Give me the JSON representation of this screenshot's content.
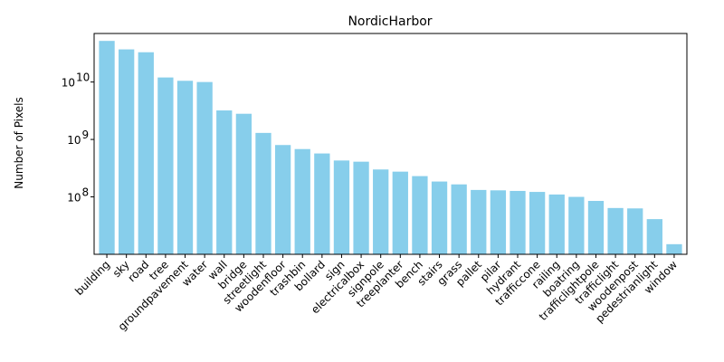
{
  "chart_data": {
    "type": "bar",
    "title": "NordicHarbor",
    "xlabel": "",
    "ylabel": "Number of Pixels",
    "yscale": "log",
    "ylim": [
      10000000,
      70000000000
    ],
    "bar_color": "#87ceeb",
    "grid": false,
    "yticks": [
      {
        "value": 100000000,
        "label": "10^8"
      },
      {
        "value": 1000000000,
        "label": "10^9"
      },
      {
        "value": 10000000000,
        "label": "10^10"
      }
    ],
    "categories": [
      "building",
      "sky",
      "road",
      "tree",
      "groundpavement",
      "water",
      "wall",
      "bridge",
      "streetlight",
      "woodenfloor",
      "trashbin",
      "bollard",
      "sign",
      "electricalbox",
      "signpole",
      "treeplanter",
      "bench",
      "stairs",
      "grass",
      "pallet",
      "pilar",
      "hydrant",
      "trafficcone",
      "railing",
      "boatring",
      "trafficlightpole",
      "trafficlight",
      "woodenpost",
      "pedestrianlight",
      "window"
    ],
    "values": [
      52000000000,
      37000000000,
      33000000000,
      12000000000,
      10500000000,
      10000000000,
      3200000000,
      2800000000,
      1300000000,
      800000000,
      680000000,
      570000000,
      430000000,
      410000000,
      300000000,
      275000000,
      230000000,
      185000000,
      165000000,
      132000000,
      130000000,
      127000000,
      122000000,
      110000000,
      100000000,
      85000000,
      64000000,
      63000000,
      41000000,
      15000000
    ]
  }
}
